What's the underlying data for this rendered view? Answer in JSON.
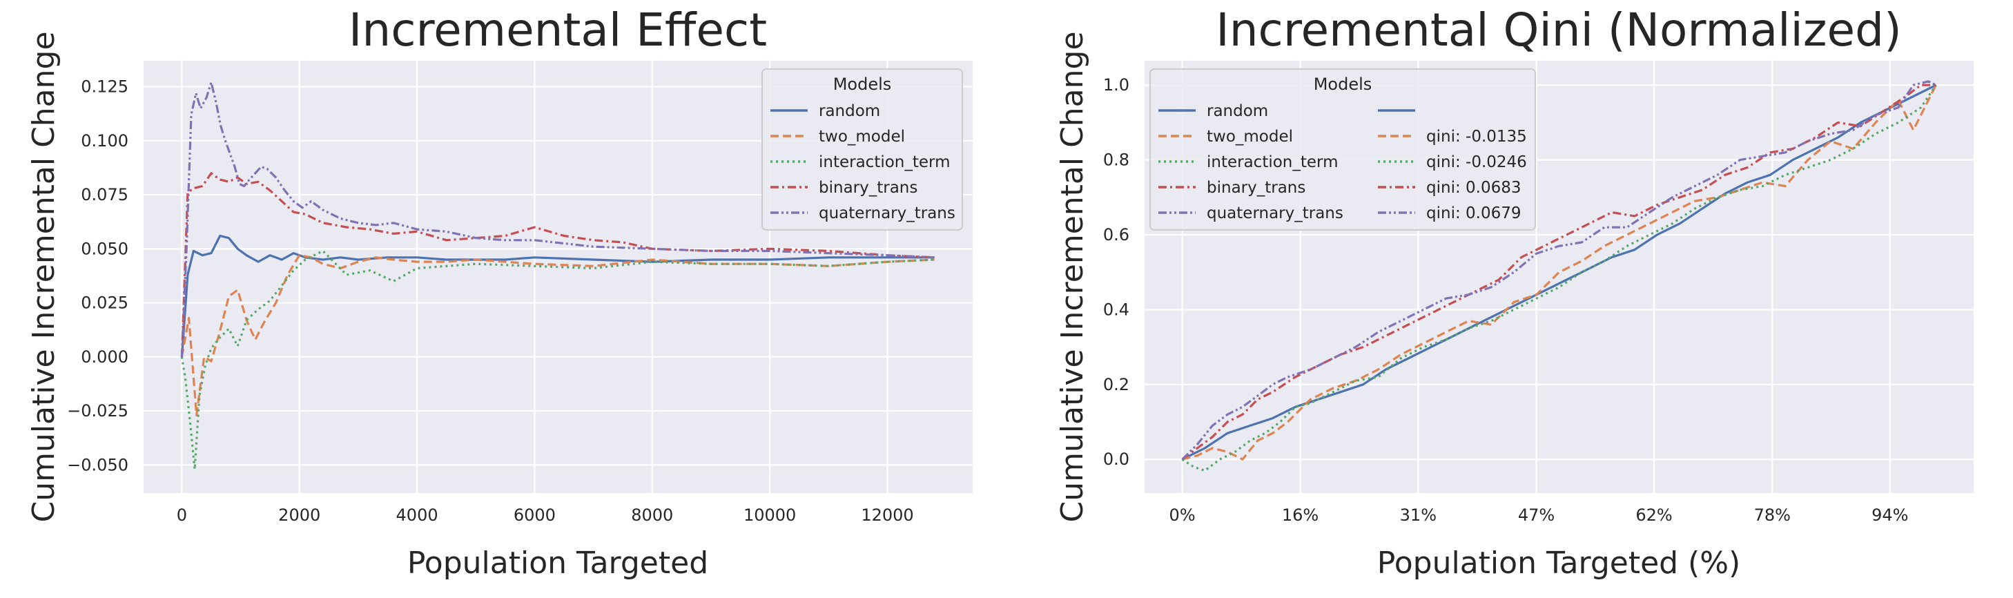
{
  "chart_data": [
    {
      "type": "line",
      "title": "Incremental Effect",
      "xlabel": "Population Targeted",
      "ylabel": "Cumulative Incremental Change",
      "xlim": [
        -650,
        13450
      ],
      "ylim": [
        -0.063,
        0.137
      ],
      "xticks": [
        0,
        2000,
        4000,
        6000,
        8000,
        10000,
        12000
      ],
      "xtick_labels": [
        "0",
        "2000",
        "4000",
        "6000",
        "8000",
        "10000",
        "12000"
      ],
      "yticks": [
        -0.05,
        -0.025,
        0.0,
        0.025,
        0.05,
        0.075,
        0.1,
        0.125
      ],
      "ytick_labels": [
        "−0.050",
        "−0.025",
        "0.000",
        "0.025",
        "0.050",
        "0.075",
        "0.100",
        "0.125"
      ],
      "grid": true,
      "legend": {
        "title": "Models",
        "placement": "top-right",
        "entries": [
          "random",
          "two_model",
          "interaction_term",
          "binary_trans",
          "quaternary_trans"
        ]
      },
      "series": [
        {
          "name": "random",
          "color": "#4c72b0",
          "dash": "solid",
          "x": [
            0,
            100,
            200,
            350,
            500,
            650,
            800,
            950,
            1100,
            1300,
            1500,
            1700,
            1900,
            2100,
            2400,
            2700,
            3000,
            3500,
            4000,
            4500,
            5000,
            5500,
            6000,
            7000,
            8000,
            9000,
            10000,
            11000,
            12000,
            12800
          ],
          "y": [
            0.0,
            0.038,
            0.049,
            0.047,
            0.048,
            0.056,
            0.055,
            0.05,
            0.047,
            0.044,
            0.047,
            0.045,
            0.048,
            0.046,
            0.045,
            0.046,
            0.045,
            0.046,
            0.046,
            0.045,
            0.045,
            0.045,
            0.046,
            0.045,
            0.044,
            0.045,
            0.045,
            0.046,
            0.046,
            0.046
          ]
        },
        {
          "name": "two_model",
          "color": "#dd8452",
          "dash": "dashed",
          "x": [
            0,
            120,
            250,
            380,
            500,
            650,
            800,
            950,
            1100,
            1250,
            1400,
            1600,
            1800,
            2000,
            2200,
            2400,
            2700,
            3000,
            3300,
            3600,
            4000,
            4500,
            5000,
            6000,
            7000,
            8000,
            9000,
            10000,
            11000,
            12000,
            12800
          ],
          "y": [
            0.0,
            0.018,
            -0.027,
            0.0,
            -0.002,
            0.012,
            0.028,
            0.031,
            0.017,
            0.008,
            0.016,
            0.025,
            0.038,
            0.047,
            0.046,
            0.043,
            0.041,
            0.044,
            0.046,
            0.045,
            0.044,
            0.044,
            0.045,
            0.043,
            0.042,
            0.045,
            0.043,
            0.043,
            0.042,
            0.044,
            0.045
          ]
        },
        {
          "name": "interaction_term",
          "color": "#55a868",
          "dash": "dotted",
          "x": [
            0,
            60,
            140,
            220,
            300,
            400,
            500,
            650,
            800,
            950,
            1100,
            1300,
            1500,
            1700,
            1900,
            2100,
            2400,
            2800,
            3200,
            3600,
            4000,
            4500,
            5000,
            6000,
            7000,
            8000,
            9000,
            10000,
            11000,
            12000,
            12800
          ],
          "y": [
            0.0,
            -0.01,
            -0.03,
            -0.052,
            -0.018,
            -0.004,
            0.004,
            0.009,
            0.013,
            0.005,
            0.017,
            0.022,
            0.026,
            0.033,
            0.04,
            0.045,
            0.049,
            0.038,
            0.04,
            0.035,
            0.041,
            0.042,
            0.043,
            0.042,
            0.041,
            0.044,
            0.043,
            0.043,
            0.042,
            0.044,
            0.045
          ]
        },
        {
          "name": "binary_trans",
          "color": "#c44e52",
          "dash": "dashdot",
          "x": [
            0,
            100,
            200,
            350,
            500,
            650,
            800,
            950,
            1100,
            1300,
            1500,
            1700,
            1900,
            2100,
            2400,
            2800,
            3200,
            3600,
            4000,
            4500,
            5000,
            5500,
            6000,
            6500,
            7000,
            7500,
            8000,
            9000,
            10000,
            11000,
            12000,
            12800
          ],
          "y": [
            0.0,
            0.076,
            0.078,
            0.079,
            0.085,
            0.082,
            0.081,
            0.083,
            0.08,
            0.081,
            0.077,
            0.072,
            0.067,
            0.066,
            0.062,
            0.06,
            0.059,
            0.057,
            0.058,
            0.054,
            0.055,
            0.056,
            0.06,
            0.056,
            0.054,
            0.053,
            0.05,
            0.049,
            0.05,
            0.049,
            0.047,
            0.046
          ]
        },
        {
          "name": "quaternary_trans",
          "color": "#8172b3",
          "dash": "dashdotdot",
          "x": [
            0,
            80,
            160,
            240,
            320,
            420,
            500,
            580,
            660,
            740,
            820,
            900,
            980,
            1060,
            1150,
            1250,
            1350,
            1450,
            1600,
            1750,
            1900,
            2050,
            2200,
            2400,
            2700,
            3000,
            3300,
            3600,
            4000,
            4500,
            5000,
            5500,
            6000,
            7000,
            8000,
            9000,
            10000,
            11000,
            12000,
            12800
          ],
          "y": [
            0.0,
            0.05,
            0.112,
            0.122,
            0.115,
            0.12,
            0.127,
            0.118,
            0.107,
            0.1,
            0.094,
            0.088,
            0.08,
            0.079,
            0.082,
            0.085,
            0.088,
            0.087,
            0.083,
            0.077,
            0.072,
            0.069,
            0.072,
            0.068,
            0.064,
            0.062,
            0.061,
            0.062,
            0.059,
            0.058,
            0.055,
            0.054,
            0.054,
            0.051,
            0.05,
            0.049,
            0.049,
            0.048,
            0.047,
            0.046
          ]
        }
      ]
    },
    {
      "type": "line",
      "title": "Incremental Qini (Normalized)",
      "xlabel": "Population Targeted (%)",
      "ylabel": "Cumulative Incremental Change",
      "xlim": [
        -5,
        105
      ],
      "ylim": [
        -0.09,
        1.065
      ],
      "xticks": [
        0,
        15.66,
        31.3,
        46.98,
        62.6,
        78.28,
        93.9
      ],
      "xtick_labels": [
        "0%",
        "16%",
        "31%",
        "47%",
        "62%",
        "78%",
        "94%"
      ],
      "yticks": [
        0.0,
        0.2,
        0.4,
        0.6,
        0.8,
        1.0
      ],
      "ytick_labels": [
        "0.0",
        "0.2",
        "0.4",
        "0.6",
        "0.8",
        "1.0"
      ],
      "grid": true,
      "legend": {
        "title": "Models",
        "placement": "top-left",
        "columns": 2,
        "entries": [
          "random",
          "two_model",
          "interaction_term",
          "binary_trans",
          "quaternary_trans"
        ],
        "qini_entries": [
          "",
          "qini: -0.0135",
          "qini: -0.0246",
          "qini: 0.0683",
          "qini: 0.0679"
        ]
      },
      "series": [
        {
          "name": "random",
          "color": "#4c72b0",
          "dash": "solid",
          "x": [
            0,
            3,
            6,
            9,
            12,
            15,
            18,
            21,
            24,
            27,
            30,
            33,
            36,
            39,
            42,
            45,
            48,
            51,
            54,
            57,
            60,
            63,
            66,
            69,
            72,
            75,
            78,
            81,
            84,
            87,
            90,
            93,
            96,
            98,
            100
          ],
          "y": [
            0.0,
            0.03,
            0.07,
            0.09,
            0.11,
            0.14,
            0.16,
            0.18,
            0.2,
            0.24,
            0.27,
            0.3,
            0.33,
            0.36,
            0.39,
            0.42,
            0.45,
            0.48,
            0.51,
            0.54,
            0.56,
            0.6,
            0.63,
            0.67,
            0.71,
            0.74,
            0.76,
            0.8,
            0.83,
            0.86,
            0.9,
            0.93,
            0.96,
            0.98,
            1.0
          ]
        },
        {
          "name": "two_model",
          "color": "#dd8452",
          "dash": "dashed",
          "x": [
            0,
            2,
            4,
            6,
            8,
            10,
            12,
            14,
            17,
            20,
            23,
            26,
            29,
            32,
            35,
            38,
            41,
            44,
            47,
            50,
            53,
            56,
            59,
            62,
            65,
            68,
            71,
            74,
            77,
            80,
            83,
            86,
            89,
            92,
            95,
            97,
            100
          ],
          "y": [
            0.0,
            0.01,
            0.03,
            0.02,
            0.0,
            0.05,
            0.07,
            0.1,
            0.16,
            0.19,
            0.21,
            0.24,
            0.28,
            0.31,
            0.34,
            0.37,
            0.36,
            0.42,
            0.44,
            0.5,
            0.53,
            0.57,
            0.6,
            0.63,
            0.66,
            0.69,
            0.7,
            0.72,
            0.74,
            0.73,
            0.8,
            0.85,
            0.83,
            0.9,
            0.96,
            0.88,
            1.0
          ]
        },
        {
          "name": "interaction_term",
          "color": "#55a868",
          "dash": "dotted",
          "x": [
            0,
            1.5,
            3,
            5,
            7,
            9,
            11,
            13,
            15,
            17,
            20,
            23,
            26,
            29,
            32,
            35,
            38,
            41,
            44,
            47,
            50,
            53,
            56,
            59,
            62,
            65,
            68,
            71,
            74,
            77,
            80,
            83,
            86,
            89,
            92,
            95,
            98,
            100
          ],
          "y": [
            0.0,
            -0.02,
            -0.03,
            0.0,
            0.02,
            0.05,
            0.07,
            0.1,
            0.14,
            0.15,
            0.18,
            0.21,
            0.22,
            0.27,
            0.3,
            0.32,
            0.35,
            0.37,
            0.4,
            0.43,
            0.46,
            0.5,
            0.53,
            0.57,
            0.6,
            0.63,
            0.67,
            0.7,
            0.72,
            0.73,
            0.76,
            0.78,
            0.8,
            0.83,
            0.87,
            0.9,
            0.94,
            1.0
          ]
        },
        {
          "name": "binary_trans",
          "color": "#c44e52",
          "dash": "dashdot",
          "x": [
            0,
            2,
            4,
            6,
            8,
            10,
            12,
            15,
            18,
            21,
            24,
            27,
            30,
            33,
            36,
            39,
            42,
            45,
            48,
            51,
            54,
            57,
            60,
            63,
            66,
            69,
            72,
            75,
            78,
            81,
            84,
            87,
            90,
            93,
            96,
            98,
            100
          ],
          "y": [
            0.0,
            0.03,
            0.06,
            0.1,
            0.12,
            0.16,
            0.18,
            0.22,
            0.25,
            0.28,
            0.3,
            0.33,
            0.36,
            0.39,
            0.42,
            0.45,
            0.48,
            0.54,
            0.57,
            0.6,
            0.63,
            0.66,
            0.65,
            0.68,
            0.7,
            0.72,
            0.76,
            0.78,
            0.82,
            0.83,
            0.86,
            0.9,
            0.89,
            0.93,
            0.97,
            1.0,
            1.0
          ]
        },
        {
          "name": "quaternary_trans",
          "color": "#8172b3",
          "dash": "dashdotdot",
          "x": [
            0,
            2,
            4,
            6,
            8,
            10,
            12,
            14,
            17,
            20,
            23,
            26,
            29,
            32,
            35,
            38,
            41,
            44,
            47,
            50,
            53,
            56,
            59,
            62,
            65,
            68,
            71,
            74,
            77,
            80,
            83,
            86,
            89,
            92,
            95,
            97,
            99,
            100
          ],
          "y": [
            0.0,
            0.04,
            0.09,
            0.12,
            0.14,
            0.17,
            0.2,
            0.22,
            0.24,
            0.27,
            0.3,
            0.34,
            0.37,
            0.4,
            0.43,
            0.44,
            0.46,
            0.5,
            0.55,
            0.57,
            0.58,
            0.62,
            0.62,
            0.66,
            0.7,
            0.73,
            0.76,
            0.8,
            0.81,
            0.82,
            0.85,
            0.87,
            0.88,
            0.92,
            0.94,
            1.0,
            1.01,
            1.0
          ]
        }
      ]
    }
  ]
}
